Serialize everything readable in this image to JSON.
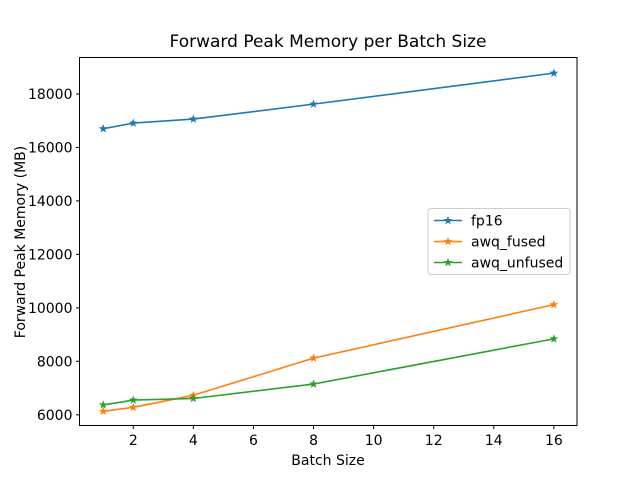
{
  "chart_data": {
    "type": "line",
    "title": "Forward Peak Memory per Batch Size",
    "xlabel": "Batch Size",
    "ylabel": "Forward Peak Memory (MB)",
    "x": [
      1,
      2,
      4,
      8,
      16
    ],
    "series": [
      {
        "name": "fp16",
        "color": "#1f77b4",
        "marker": "star",
        "values": [
          16700,
          16910,
          17060,
          17620,
          18780
        ]
      },
      {
        "name": "awq_fused",
        "color": "#ff7f0e",
        "marker": "star",
        "values": [
          6130,
          6280,
          6730,
          8120,
          10120
        ]
      },
      {
        "name": "awq_unfused",
        "color": "#2ca02c",
        "marker": "star",
        "values": [
          6370,
          6550,
          6610,
          7150,
          8840
        ]
      }
    ],
    "xticks": [
      2,
      4,
      6,
      8,
      10,
      12,
      14,
      16
    ],
    "yticks": [
      6000,
      8000,
      10000,
      12000,
      14000,
      16000,
      18000
    ],
    "xlim": [
      0.21,
      16.77
    ],
    "ylim": [
      5600,
      19364
    ],
    "grid": false,
    "legend": {
      "position": "center-right",
      "entries": [
        "fp16",
        "awq_fused",
        "awq_unfused"
      ]
    },
    "background": "#ffffff",
    "spine_color": "#000000"
  }
}
